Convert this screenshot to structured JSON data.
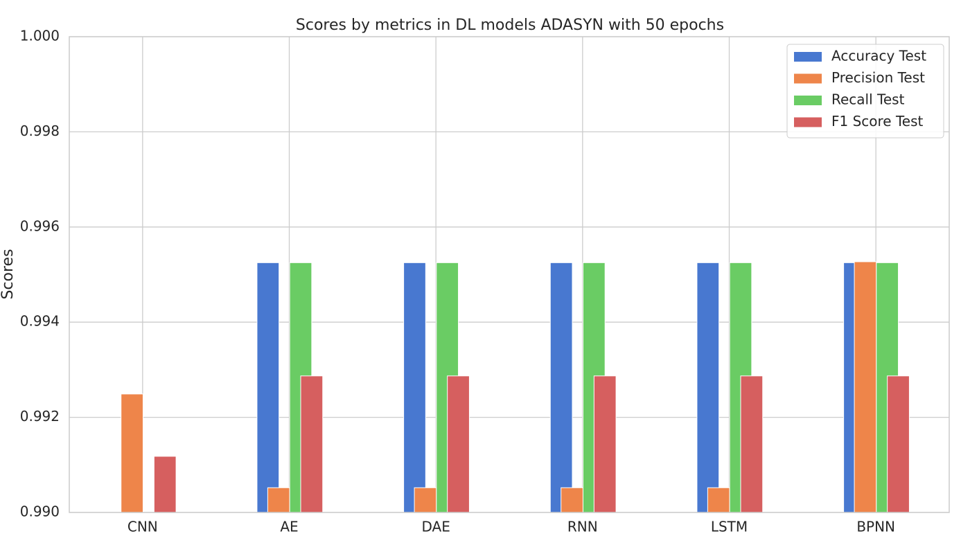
{
  "chart_data": {
    "type": "bar",
    "title": "Scores by metrics in DL models ADASYN with 50 epochs",
    "y_label": "Scores",
    "categories": [
      "CNN",
      "AE",
      "DAE",
      "RNN",
      "LSTM",
      "BPNN"
    ],
    "series": [
      {
        "name": "Accuracy Test",
        "color": "#4878d0",
        "values": [
          null,
          0.99525,
          0.99525,
          0.99525,
          0.99525,
          0.99525
        ]
      },
      {
        "name": "Precision Test",
        "color": "#ee854a",
        "values": [
          0.99249,
          0.99052,
          0.99052,
          0.99052,
          0.99052,
          0.99527
        ]
      },
      {
        "name": "Recall Test",
        "color": "#6acc64",
        "values": [
          null,
          0.99525,
          0.99525,
          0.99525,
          0.99525,
          0.99525
        ]
      },
      {
        "name": "F1 Score Test",
        "color": "#d65f5f",
        "values": [
          0.99118,
          0.99287,
          0.99287,
          0.99287,
          0.99287,
          0.99287
        ]
      }
    ],
    "ylim": [
      0.99,
      1.0
    ],
    "yticks": [
      {
        "value": 0.99,
        "label": "0.990"
      },
      0.992,
      0.994,
      0.996,
      0.998,
      {
        "value": 1,
        "label": "1.000"
      }
    ],
    "grid": true,
    "legend": "upper right"
  }
}
